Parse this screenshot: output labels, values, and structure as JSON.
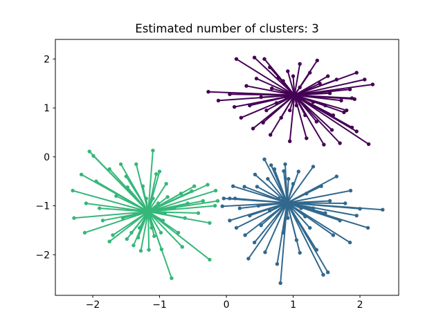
{
  "figure": {
    "background": "#ffffff"
  },
  "chart_data": {
    "type": "scatter",
    "title": "Estimated number of clusters: 3",
    "xlabel": "",
    "ylabel": "",
    "grid": false,
    "legend": null,
    "xlim": [
      -2.56,
      2.58
    ],
    "ylim": [
      -2.83,
      2.4
    ],
    "x_ticks": [
      -2,
      -1,
      0,
      1,
      2
    ],
    "y_ticks": [
      -2,
      -1,
      0,
      1,
      2
    ],
    "axis_color": "#000000",
    "marker_style": "dot-with-spoke-lines-from-cluster-center",
    "clusters": [
      {
        "name": "cluster-1-purple",
        "color": "#440154",
        "center": [
          1.02,
          1.26
        ],
        "points": [
          [
            0.15,
            2.0
          ],
          [
            0.42,
            2.03
          ],
          [
            0.57,
            2.0
          ],
          [
            0.65,
            1.83
          ],
          [
            1.1,
            1.9
          ],
          [
            1.36,
            1.97
          ],
          [
            -0.27,
            1.33
          ],
          [
            -0.12,
            1.15
          ],
          [
            0.05,
            1.28
          ],
          [
            0.12,
            1.02
          ],
          [
            2.19,
            1.48
          ],
          [
            2.07,
            1.58
          ],
          [
            1.95,
            1.72
          ],
          [
            1.88,
            1.2
          ],
          [
            1.76,
            0.91
          ],
          [
            1.95,
            0.52
          ],
          [
            2.13,
            0.26
          ],
          [
            1.7,
            0.28
          ],
          [
            1.46,
            0.25
          ],
          [
            1.2,
            0.38
          ],
          [
            0.95,
            0.32
          ],
          [
            0.66,
            0.45
          ],
          [
            0.4,
            0.58
          ],
          [
            0.22,
            0.8
          ],
          [
            0.3,
            1.45
          ],
          [
            0.45,
            1.6
          ],
          [
            0.52,
            1.22
          ],
          [
            0.6,
            0.95
          ],
          [
            0.68,
            1.4
          ],
          [
            0.75,
            1.1
          ],
          [
            0.82,
            0.8
          ],
          [
            0.85,
            1.55
          ],
          [
            0.9,
            1.2
          ],
          [
            0.95,
            0.95
          ],
          [
            1.0,
            1.65
          ],
          [
            1.05,
            1.05
          ],
          [
            1.1,
            1.42
          ],
          [
            1.18,
            0.85
          ],
          [
            1.22,
            1.3
          ],
          [
            1.3,
            1.12
          ],
          [
            1.35,
            0.72
          ],
          [
            1.4,
            1.5
          ],
          [
            1.48,
            1.05
          ],
          [
            1.55,
            1.3
          ],
          [
            1.6,
            0.85
          ],
          [
            1.65,
            1.58
          ],
          [
            1.72,
            1.15
          ],
          [
            1.8,
            0.95
          ],
          [
            1.85,
            1.38
          ],
          [
            1.92,
            1.18
          ],
          [
            0.35,
            1.05
          ],
          [
            0.55,
            0.7
          ],
          [
            1.58,
            0.55
          ],
          [
            1.88,
            0.6
          ],
          [
            1.25,
            1.72
          ],
          [
            0.92,
            1.75
          ],
          [
            1.52,
            1.65
          ],
          [
            0.78,
            1.62
          ]
        ]
      },
      {
        "name": "cluster-2-green",
        "color": "#35b779",
        "center": [
          -1.17,
          -1.12
        ],
        "points": [
          [
            -2.3,
            -0.69
          ],
          [
            -2.05,
            0.11
          ],
          [
            -1.99,
            0.02
          ],
          [
            -2.17,
            -0.36
          ],
          [
            -1.1,
            0.13
          ],
          [
            -2.28,
            -1.25
          ],
          [
            -2.12,
            -1.55
          ],
          [
            -2.1,
            -0.95
          ],
          [
            -1.95,
            -0.5
          ],
          [
            -1.9,
            -1.05
          ],
          [
            -1.85,
            -1.3
          ],
          [
            -1.75,
            -0.25
          ],
          [
            -1.75,
            -1.73
          ],
          [
            -1.7,
            -1.6
          ],
          [
            -1.65,
            -0.8
          ],
          [
            -1.58,
            -0.15
          ],
          [
            -1.55,
            -1.25
          ],
          [
            -1.5,
            -0.4
          ],
          [
            -1.49,
            -1.68
          ],
          [
            -1.48,
            -0.62
          ],
          [
            -1.42,
            -1.55
          ],
          [
            -1.39,
            -1.81
          ],
          [
            -1.38,
            -1.18
          ],
          [
            -1.35,
            -0.15
          ],
          [
            -1.32,
            -1.65
          ],
          [
            -1.3,
            -1.45
          ],
          [
            -1.28,
            -1.92
          ],
          [
            -1.25,
            -0.6
          ],
          [
            -1.22,
            -1.05
          ],
          [
            -1.2,
            -0.85
          ],
          [
            -1.16,
            -1.9
          ],
          [
            -1.12,
            -1.45
          ],
          [
            -1.1,
            -0.85
          ],
          [
            -1.08,
            -1.62
          ],
          [
            -1.05,
            -0.35
          ],
          [
            -1.02,
            -0.95
          ],
          [
            -1.0,
            -0.3
          ],
          [
            -0.98,
            -1.55
          ],
          [
            -0.97,
            -1.89
          ],
          [
            -0.95,
            -1.3
          ],
          [
            -0.92,
            -1.15
          ],
          [
            -0.9,
            -0.55
          ],
          [
            -0.88,
            -0.82
          ],
          [
            -0.82,
            -2.48
          ],
          [
            -0.78,
            -1.05
          ],
          [
            -0.72,
            -1.55
          ],
          [
            -0.68,
            -0.75
          ],
          [
            -0.66,
            -1.84
          ],
          [
            -0.62,
            -1.25
          ],
          [
            -0.58,
            -0.95
          ],
          [
            -0.52,
            -0.7
          ],
          [
            -0.48,
            -0.6
          ],
          [
            -0.42,
            -1.15
          ],
          [
            -0.35,
            -0.9
          ],
          [
            -0.28,
            -0.57
          ],
          [
            -0.25,
            -1.35
          ],
          [
            -0.25,
            -2.1
          ],
          [
            -0.16,
            -0.69
          ],
          [
            -0.13,
            -0.9
          ],
          [
            -0.17,
            -1.0
          ]
        ]
      },
      {
        "name": "cluster-3-blue",
        "color": "#31688e",
        "center": [
          0.91,
          -0.94
        ],
        "points": [
          [
            -0.06,
            -1.01
          ],
          [
            -0.04,
            -0.85
          ],
          [
            0.05,
            -0.85
          ],
          [
            0.13,
            -0.85
          ],
          [
            0.1,
            -0.6
          ],
          [
            0.05,
            -1.3
          ],
          [
            0.15,
            -1.45
          ],
          [
            0.2,
            -1.05
          ],
          [
            0.27,
            -0.61
          ],
          [
            0.28,
            -1.6
          ],
          [
            0.33,
            -2.08
          ],
          [
            0.35,
            -1.2
          ],
          [
            0.43,
            -0.36
          ],
          [
            0.42,
            -1.75
          ],
          [
            0.46,
            -0.61
          ],
          [
            0.48,
            -1.0
          ],
          [
            0.52,
            -1.4
          ],
          [
            0.57,
            -0.05
          ],
          [
            0.58,
            -1.95
          ],
          [
            0.62,
            -0.45
          ],
          [
            0.65,
            -1.1
          ],
          [
            0.67,
            -0.17
          ],
          [
            0.72,
            -0.25
          ],
          [
            0.76,
            -2.19
          ],
          [
            0.78,
            -0.85
          ],
          [
            0.81,
            -2.58
          ],
          [
            0.85,
            -1.55
          ],
          [
            0.86,
            -0.29
          ],
          [
            0.88,
            -0.15
          ],
          [
            0.92,
            -1.25
          ],
          [
            0.93,
            -0.45
          ],
          [
            1.0,
            -0.55
          ],
          [
            1.02,
            -0.95
          ],
          [
            1.05,
            -1.7
          ],
          [
            1.08,
            -0.3
          ],
          [
            1.1,
            -1.96
          ],
          [
            1.12,
            -1.05
          ],
          [
            1.18,
            -1.22
          ],
          [
            1.2,
            -0.75
          ],
          [
            1.25,
            -1.45
          ],
          [
            1.3,
            -0.2
          ],
          [
            1.3,
            -1.05
          ],
          [
            1.35,
            -1.9
          ],
          [
            1.42,
            -0.6
          ],
          [
            1.45,
            -2.41
          ],
          [
            1.48,
            -1.15
          ],
          [
            1.52,
            -2.36
          ],
          [
            1.55,
            -0.9
          ],
          [
            1.6,
            -1.6
          ],
          [
            1.65,
            -0.4
          ],
          [
            1.7,
            -1.3
          ],
          [
            1.78,
            -0.95
          ],
          [
            1.85,
            -1.75
          ],
          [
            1.86,
            -0.69
          ],
          [
            1.95,
            -1.2
          ],
          [
            2.0,
            -1.06
          ],
          [
            2.12,
            -1.45
          ],
          [
            2.34,
            -1.08
          ]
        ]
      }
    ]
  }
}
